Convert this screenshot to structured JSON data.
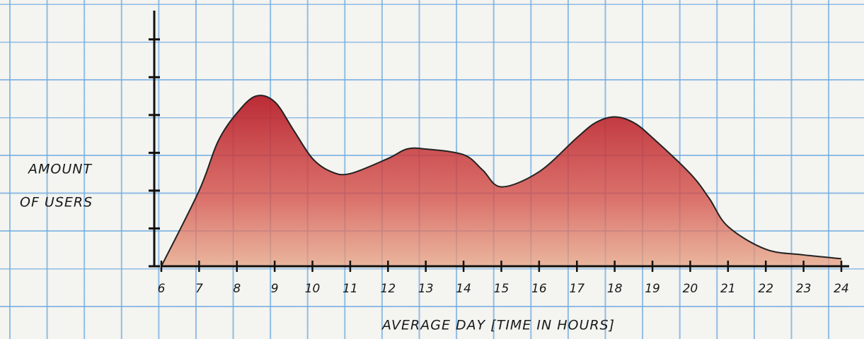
{
  "chart_data": {
    "type": "area",
    "y_label": [
      "AMOUNT",
      "OF USERS"
    ],
    "x_label": "AVERAGE DAY [TIME IN HOURS]",
    "x": [
      6,
      7,
      7.5,
      8,
      8.5,
      9,
      9.5,
      10,
      10.5,
      11,
      12,
      12.5,
      13,
      14,
      14.5,
      15,
      16,
      17,
      17.5,
      18,
      18.5,
      19,
      20,
      20.5,
      21,
      22,
      23,
      24
    ],
    "values": [
      0,
      2.0,
      3.3,
      4.05,
      4.5,
      4.35,
      3.6,
      2.85,
      2.5,
      2.45,
      2.85,
      3.1,
      3.1,
      2.95,
      2.55,
      2.1,
      2.5,
      3.4,
      3.8,
      3.95,
      3.8,
      3.4,
      2.45,
      1.8,
      1.05,
      0.45,
      0.3,
      0.2
    ],
    "color": "#c8343a",
    "xlim": [
      6,
      24.3
    ],
    "xticks": [
      6,
      7,
      8,
      9,
      10,
      11,
      12,
      13,
      14,
      15,
      16,
      17,
      18,
      19,
      20,
      21,
      22,
      23,
      24
    ],
    "ylim": [
      0,
      6.5
    ],
    "yticks": [
      0,
      1,
      2,
      3,
      4,
      5,
      6
    ]
  }
}
